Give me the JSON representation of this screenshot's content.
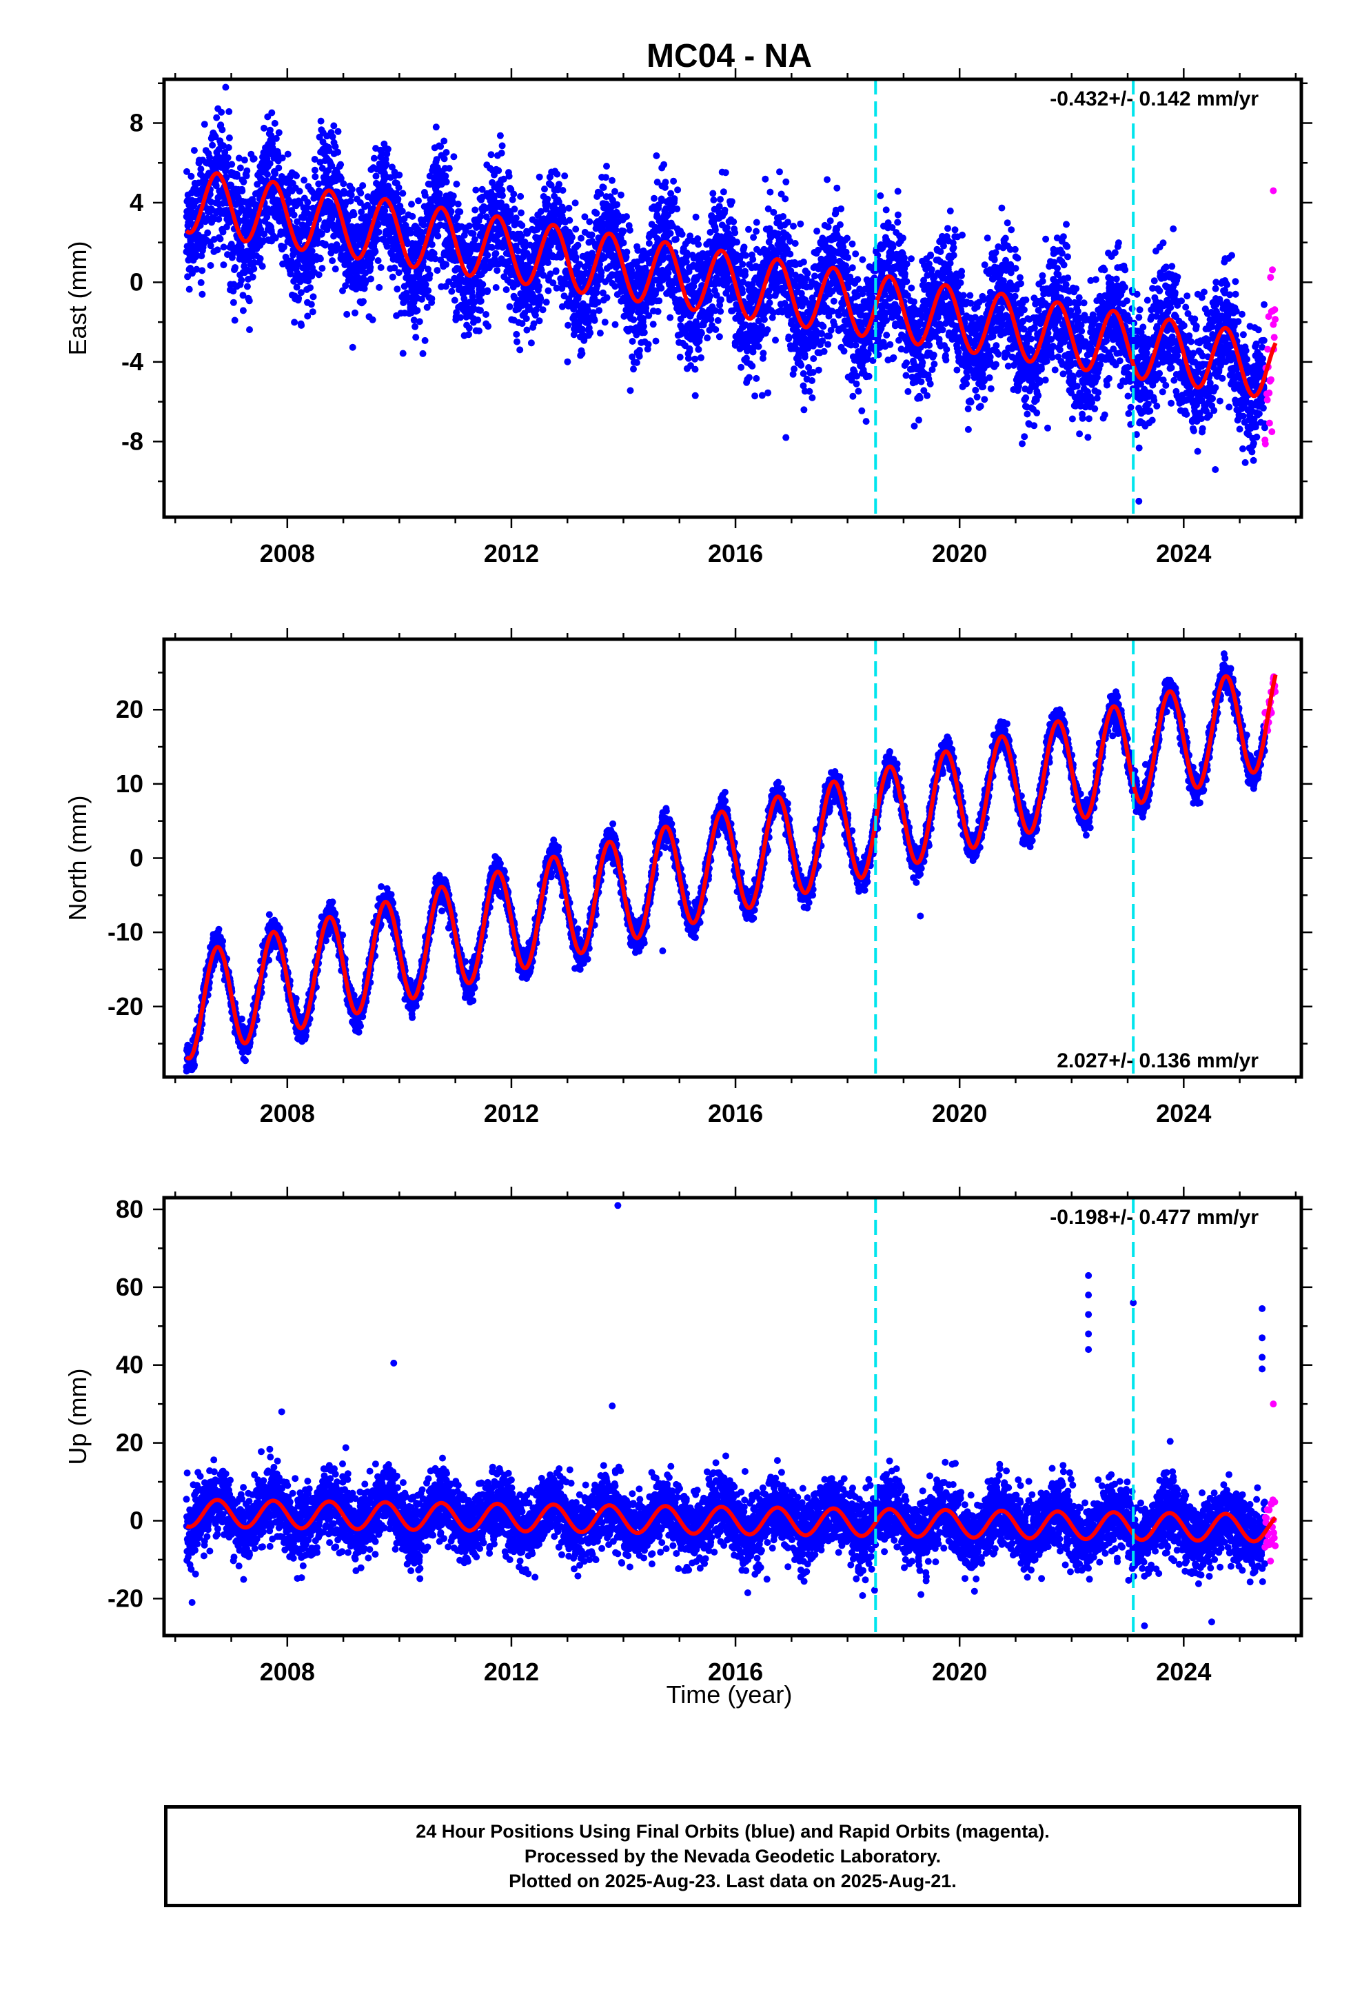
{
  "title": "MC04 - NA",
  "xlabel": "Time (year)",
  "colors": {
    "final_orbits": "#0000ff",
    "rapid_orbits": "#ff00ff",
    "model_fit": "#ff0000",
    "event_lines": "#00e5ee",
    "frame": "#000000"
  },
  "caption": {
    "line1": "24 Hour Positions Using Final Orbits (blue) and Rapid Orbits (magenta).",
    "line2": "Processed by the Nevada Geodetic Laboratory.",
    "line3": "Plotted on 2025-Aug-23. Last data on 2025-Aug-21."
  },
  "chart_data": [
    {
      "type": "scatter",
      "component": "east",
      "ylabel": "East (mm)",
      "xlim": [
        2005.8,
        2026.1
      ],
      "ylim": [
        -11.8,
        10.2
      ],
      "xticks": [
        2008,
        2012,
        2016,
        2020,
        2024
      ],
      "yticks": [
        -8,
        -4,
        0,
        4,
        8
      ],
      "velocity_label": "-0.432+/- 0.142 mm/yr",
      "velocity_label_position": "top-right",
      "event_lines_x": [
        2018.5,
        2023.1
      ],
      "final_orbit_range": [
        2006.2,
        2025.45
      ],
      "rapid_orbit_range": [
        2025.45,
        2025.64
      ],
      "model_fit": {
        "color": "red",
        "offset_at_2006": 4.2,
        "trend_mm_per_yr": -0.432,
        "annual_amplitude": 1.6,
        "scatter_sd": 1.6
      },
      "outliers": [
        {
          "x": 2006.9,
          "y": 9.8
        },
        {
          "x": 2016.9,
          "y": -7.8
        },
        {
          "x": 2023.2,
          "y": -11.0
        },
        {
          "x": 2025.6,
          "y": 4.6
        }
      ]
    },
    {
      "type": "scatter",
      "component": "north",
      "ylabel": "North (mm)",
      "xlim": [
        2005.8,
        2026.1
      ],
      "ylim": [
        -29.5,
        29.5
      ],
      "xticks": [
        2008,
        2012,
        2016,
        2020,
        2024
      ],
      "yticks": [
        -20,
        -10,
        0,
        10,
        20
      ],
      "velocity_label": "2.027+/- 0.136 mm/yr",
      "velocity_label_position": "bottom-right",
      "event_lines_x": [
        2018.5,
        2023.1
      ],
      "final_orbit_range": [
        2006.2,
        2025.45
      ],
      "rapid_orbit_range": [
        2025.45,
        2025.64
      ],
      "model_fit": {
        "color": "red",
        "offset_at_2006": -20.5,
        "trend_mm_per_yr": 2.027,
        "annual_amplitude": 7.0,
        "scatter_sd": 1.0
      },
      "outliers": [
        {
          "x": 2006.3,
          "y": -28.5
        },
        {
          "x": 2019.3,
          "y": -7.8
        },
        {
          "x": 2014.7,
          "y": -12.5
        }
      ]
    },
    {
      "type": "scatter",
      "component": "up",
      "ylabel": "Up (mm)",
      "xlim": [
        2005.8,
        2026.1
      ],
      "ylim": [
        -29.5,
        83.0
      ],
      "xticks": [
        2008,
        2012,
        2016,
        2020,
        2024
      ],
      "yticks": [
        -20,
        0,
        20,
        40,
        60,
        80
      ],
      "velocity_label": "-0.198+/- 0.477 mm/yr",
      "velocity_label_position": "top-right",
      "event_lines_x": [
        2018.5,
        2023.1
      ],
      "final_orbit_range": [
        2006.2,
        2025.45
      ],
      "rapid_orbit_range": [
        2025.45,
        2025.64
      ],
      "model_fit": {
        "color": "red",
        "offset_at_2006": 2.0,
        "trend_mm_per_yr": -0.198,
        "annual_amplitude": 3.5,
        "scatter_sd": 4.5
      },
      "outliers": [
        {
          "x": 2013.9,
          "y": 81.0
        },
        {
          "x": 2009.9,
          "y": 40.5
        },
        {
          "x": 2013.8,
          "y": 29.5
        },
        {
          "x": 2007.9,
          "y": 28.0
        },
        {
          "x": 2022.3,
          "y": 63.0
        },
        {
          "x": 2022.3,
          "y": 58.0
        },
        {
          "x": 2022.3,
          "y": 53.0
        },
        {
          "x": 2022.3,
          "y": 48.0
        },
        {
          "x": 2022.3,
          "y": 44.0
        },
        {
          "x": 2023.1,
          "y": 56.0
        },
        {
          "x": 2025.4,
          "y": 54.5
        },
        {
          "x": 2025.4,
          "y": 47.0
        },
        {
          "x": 2025.4,
          "y": 42.0
        },
        {
          "x": 2025.4,
          "y": 39.0
        },
        {
          "x": 2025.6,
          "y": 30.0
        },
        {
          "x": 2006.3,
          "y": -21.0
        },
        {
          "x": 2023.3,
          "y": -27.0
        },
        {
          "x": 2024.5,
          "y": -26.0
        }
      ]
    }
  ]
}
